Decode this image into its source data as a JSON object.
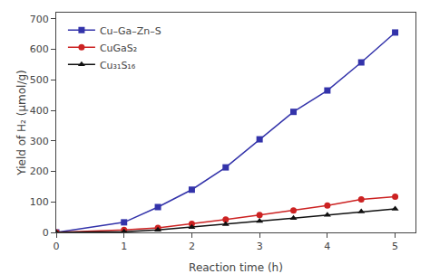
{
  "chart_data": {
    "type": "line",
    "x": [
      0,
      1,
      1.5,
      2,
      2.5,
      3,
      3.5,
      4,
      4.5,
      5
    ],
    "series": [
      {
        "name": "Cu–Ga–Zn–S",
        "color": "#3333aa",
        "marker": "square",
        "values": [
          0,
          33,
          83,
          140,
          213,
          305,
          395,
          465,
          557,
          655
        ]
      },
      {
        "name": "CuGaS₂",
        "color": "#cc2222",
        "marker": "circle",
        "values": [
          0,
          8,
          15,
          28,
          42,
          57,
          72,
          88,
          108,
          117
        ]
      },
      {
        "name": "Cu₃₁S₁₆",
        "color": "#111111",
        "marker": "triangle-up",
        "values": [
          0,
          2,
          8,
          17,
          27,
          37,
          47,
          57,
          68,
          77
        ]
      }
    ],
    "xlabel": "Reaction time (h)",
    "ylabel": "Yield of H₂ (μmol/g)",
    "xlim": [
      0,
      5.3
    ],
    "ylim": [
      0,
      720
    ],
    "xticks": [
      0,
      1,
      2,
      3,
      4,
      5
    ],
    "yticks": [
      0,
      100,
      200,
      300,
      400,
      500,
      600,
      700
    ],
    "grid": false,
    "legend": "upper left"
  }
}
